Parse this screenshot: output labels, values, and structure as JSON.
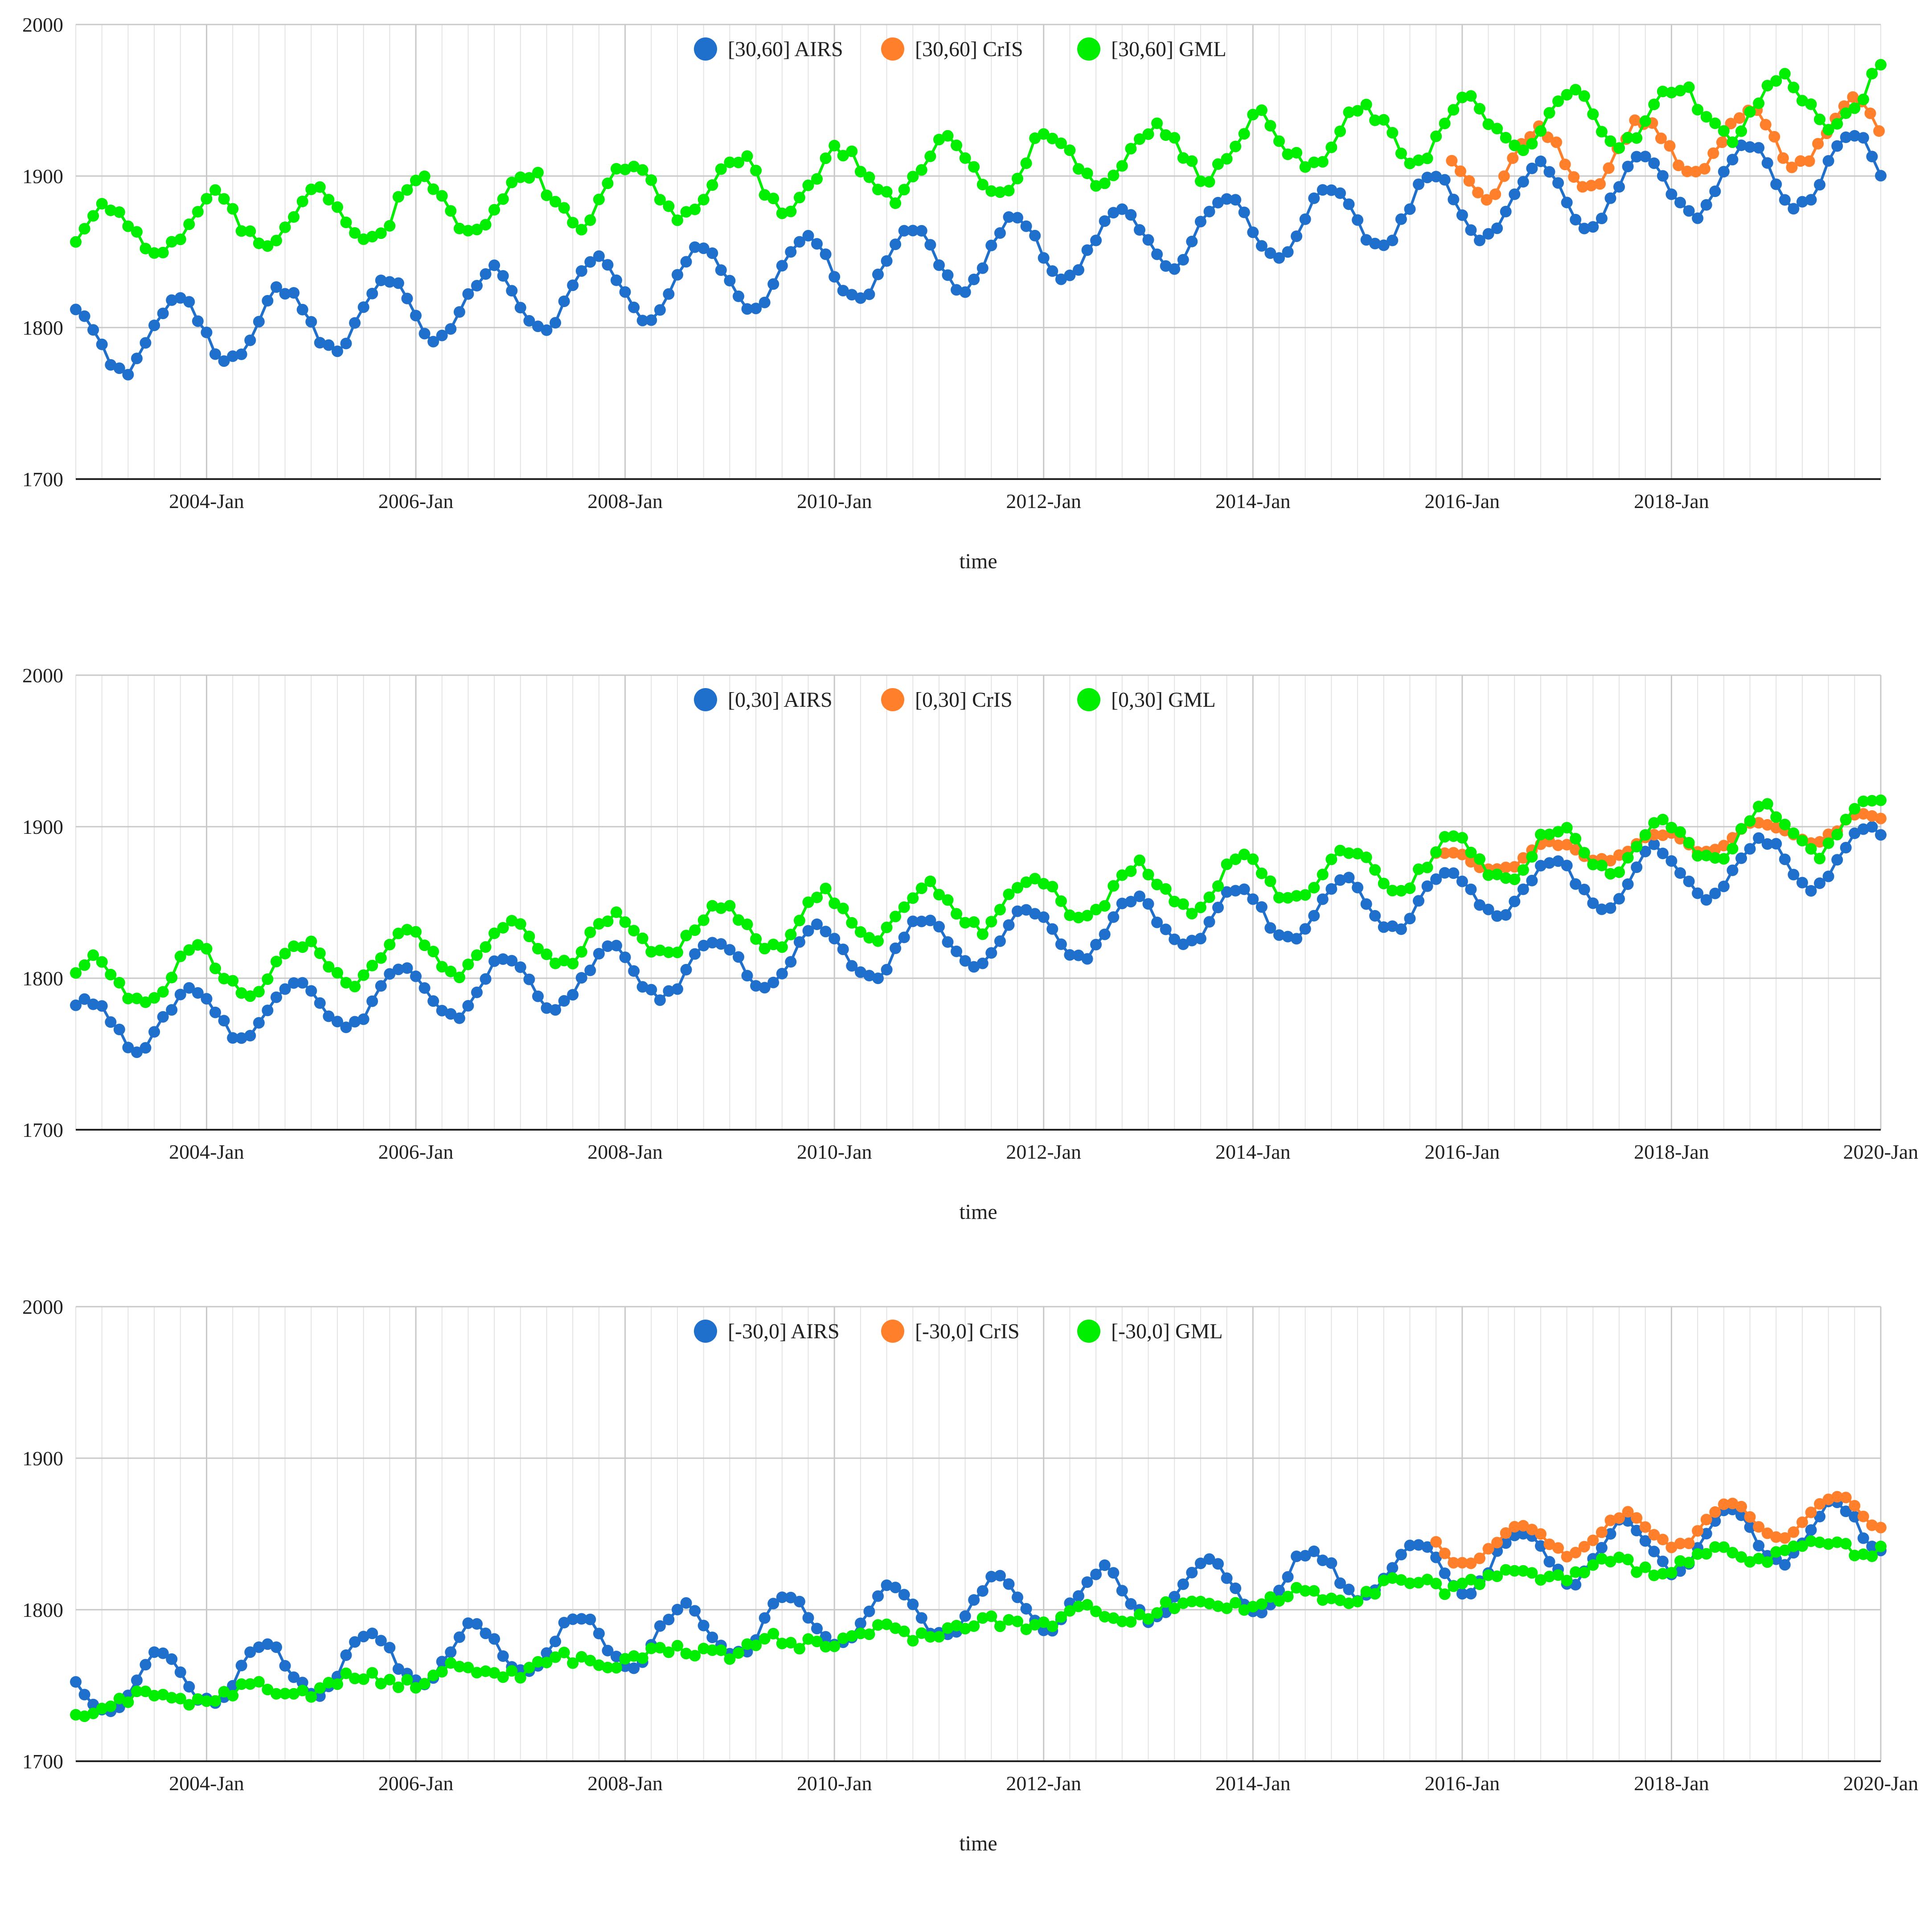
{
  "colors": {
    "AIRS": "#1f6fcc",
    "CrIS": "#ff7f2a",
    "GML": "#00ee00",
    "grid": "#d0d0d0",
    "axis": "#222222"
  },
  "chart_data": [
    {
      "type": "line",
      "title": "",
      "xlabel": "time",
      "ylabel": "",
      "ylim": [
        1700,
        2000
      ],
      "yticks": [
        "1700",
        "1800",
        "1900",
        "2000"
      ],
      "xlim": [
        2002.75,
        2020.0
      ],
      "xticks": [
        {
          "label": "2004-Jan",
          "value": 2004.0
        },
        {
          "label": "2006-Jan",
          "value": 2006.0
        },
        {
          "label": "2008-Jan",
          "value": 2008.0
        },
        {
          "label": "2010-Jan",
          "value": 2010.0
        },
        {
          "label": "2012-Jan",
          "value": 2012.0
        },
        {
          "label": "2014-Jan",
          "value": 2014.0
        },
        {
          "label": "2016-Jan",
          "value": 2016.0
        },
        {
          "label": "2018-Jan",
          "value": 2018.0
        }
      ],
      "legend": "top-center",
      "series": [
        {
          "name": "[30,60] AIRS",
          "key": "AIRS",
          "start": 2002.75,
          "end": 2020.0,
          "base": 1790,
          "trend": 6.8,
          "amp": 22,
          "phase": 0.72,
          "noise": 3
        },
        {
          "name": "[30,60] CrIS",
          "key": "CrIS",
          "start": 2015.9,
          "end": 2020.0,
          "base": 1815,
          "trend": 6.8,
          "amp": 20,
          "phase": 0.72,
          "noise": 3
        },
        {
          "name": "[30,60] GML",
          "key": "GML",
          "start": 2002.75,
          "end": 2020.0,
          "base": 1862,
          "trend": 5.2,
          "amp": 18,
          "phase": 0.05,
          "noise": 5
        }
      ]
    },
    {
      "type": "line",
      "title": "",
      "xlabel": "time",
      "ylabel": "",
      "ylim": [
        1700,
        2000
      ],
      "yticks": [
        "1700",
        "1800",
        "1900",
        "2000"
      ],
      "xlim": [
        2002.75,
        2020.0
      ],
      "xticks": [
        {
          "label": "2004-Jan",
          "value": 2004.0
        },
        {
          "label": "2006-Jan",
          "value": 2006.0
        },
        {
          "label": "2008-Jan",
          "value": 2008.0
        },
        {
          "label": "2010-Jan",
          "value": 2010.0
        },
        {
          "label": "2012-Jan",
          "value": 2012.0
        },
        {
          "label": "2014-Jan",
          "value": 2014.0
        },
        {
          "label": "2016-Jan",
          "value": 2016.0
        },
        {
          "label": "2018-Jan",
          "value": 2018.0
        },
        {
          "label": "2020-Jan",
          "value": 2020.0
        }
      ],
      "legend": "top-center",
      "series": [
        {
          "name": "[0,30] AIRS",
          "key": "AIRS",
          "start": 2002.75,
          "end": 2020.0,
          "base": 1768,
          "trend": 6.6,
          "amp": 18,
          "phase": 0.85,
          "noise": 3
        },
        {
          "name": "[0,30] CrIS",
          "key": "CrIS",
          "start": 2015.75,
          "end": 2020.0,
          "base": 1790,
          "trend": 6.5,
          "amp": 8,
          "phase": 0.85,
          "noise": 2
        },
        {
          "name": "[0,30] GML",
          "key": "GML",
          "start": 2002.75,
          "end": 2020.0,
          "base": 1795,
          "trend": 6.2,
          "amp": 16,
          "phase": 0.9,
          "noise": 4
        }
      ]
    },
    {
      "type": "line",
      "title": "",
      "xlabel": "time",
      "ylabel": "",
      "ylim": [
        1700,
        2000
      ],
      "yticks": [
        "1700",
        "1800",
        "1900",
        "2000"
      ],
      "xlim": [
        2002.75,
        2020.0
      ],
      "xticks": [
        {
          "label": "2004-Jan",
          "value": 2004.0
        },
        {
          "label": "2006-Jan",
          "value": 2006.0
        },
        {
          "label": "2008-Jan",
          "value": 2008.0
        },
        {
          "label": "2010-Jan",
          "value": 2010.0
        },
        {
          "label": "2012-Jan",
          "value": 2012.0
        },
        {
          "label": "2014-Jan",
          "value": 2014.0
        },
        {
          "label": "2016-Jan",
          "value": 2016.0
        },
        {
          "label": "2018-Jan",
          "value": 2018.0
        },
        {
          "label": "2020-Jan",
          "value": 2020.0
        }
      ],
      "legend": "top-center",
      "series": [
        {
          "name": "[-30,0] AIRS",
          "key": "AIRS",
          "start": 2002.75,
          "end": 2020.0,
          "base": 1748,
          "trend": 6.2,
          "amp": 18,
          "phase": 0.55,
          "noise": 3
        },
        {
          "name": "[-30,0] CrIS",
          "key": "CrIS",
          "start": 2015.75,
          "end": 2020.0,
          "base": 1762,
          "trend": 6.0,
          "amp": 12,
          "phase": 0.55,
          "noise": 2
        },
        {
          "name": "[-30,0] GML",
          "key": "GML",
          "start": 2002.75,
          "end": 2020.0,
          "base": 1735,
          "trend": 6.3,
          "amp": 4,
          "phase": 0.4,
          "noise": 4
        }
      ]
    }
  ]
}
